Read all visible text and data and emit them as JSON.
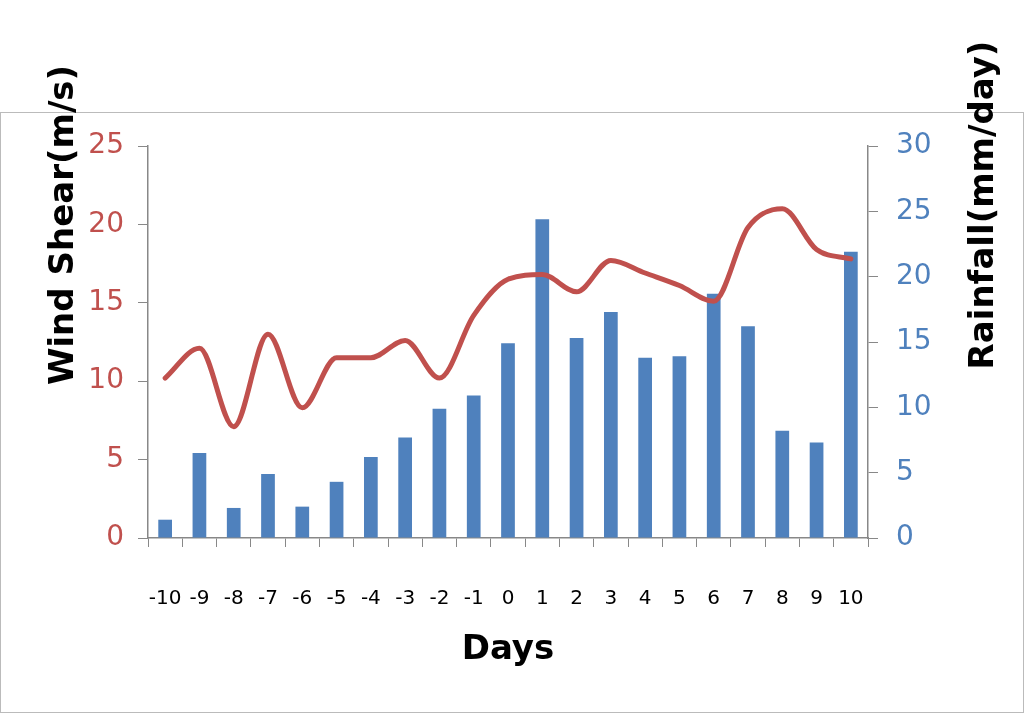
{
  "chart_data": {
    "type": "bar",
    "xlabel": "Days",
    "ylabel": "Wind Shear(m/s)",
    "y2label": "Rainfall(mm/day)",
    "categories": [
      "-10",
      "-9",
      "-8",
      "-7",
      "-6",
      "-5",
      "-4",
      "-3",
      "-2",
      "-1",
      "0",
      "1",
      "2",
      "3",
      "4",
      "5",
      "6",
      "7",
      "8",
      "9",
      "10"
    ],
    "series": [
      {
        "axis": "y2",
        "color": "#4f81bd",
        "values": [
          1.4,
          6.5,
          2.3,
          4.9,
          2.4,
          4.3,
          6.2,
          7.7,
          9.9,
          10.9,
          14.9,
          24.4,
          15.3,
          17.3,
          13.8,
          13.9,
          18.7,
          16.2,
          8.2,
          7.3,
          21.9
        ]
      },
      {
        "type": "line",
        "axis": "y",
        "color": "#c0504d",
        "values": [
          10.2,
          12.1,
          7.1,
          13.0,
          8.3,
          11.5,
          11.5,
          12.6,
          10.2,
          14.2,
          16.5,
          16.8,
          15.7,
          17.7,
          16.9,
          16.1,
          15.1,
          19.8,
          21.0,
          18.4,
          17.8
        ]
      }
    ],
    "ylim": [
      0,
      25
    ],
    "yticks": [
      0,
      5,
      10,
      15,
      20,
      25
    ],
    "y2lim": [
      0,
      30
    ],
    "y2ticks": [
      0,
      5,
      10,
      15,
      20,
      25,
      30
    ],
    "legend": false,
    "marker": "none"
  }
}
